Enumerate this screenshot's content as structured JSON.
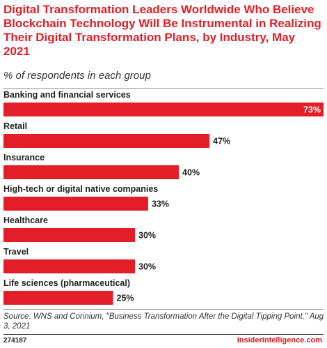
{
  "chart_data": {
    "type": "bar",
    "orientation": "horizontal",
    "title": "Digital Transformation Leaders Worldwide Who Believe Blockchain Technology Will Be Instrumental in Realizing Their Digital Transformation Plans, by Industry, May 2021",
    "subtitle": "% of respondents in each group",
    "categories": [
      "Banking and financial services",
      "Retail",
      "Insurance",
      "High-tech or digital native companies",
      "Healthcare",
      "Travel",
      "Life sciences (pharmaceutical)"
    ],
    "values": [
      73,
      47,
      40,
      33,
      30,
      30,
      25
    ],
    "value_labels": [
      "73%",
      "47%",
      "40%",
      "33%",
      "30%",
      "30%",
      "25%"
    ],
    "xlim": [
      0,
      73
    ],
    "bar_color": "#e31e26",
    "grid": false,
    "legend": "none"
  },
  "footer": {
    "source": "Source: WNS and Corinium, \"Business Transformation After the Digital Tipping Point,\" Aug 3, 2021",
    "chart_id": "274187",
    "brand": "InsiderIntelligence.com"
  },
  "colors": {
    "accent": "#e31e26"
  }
}
